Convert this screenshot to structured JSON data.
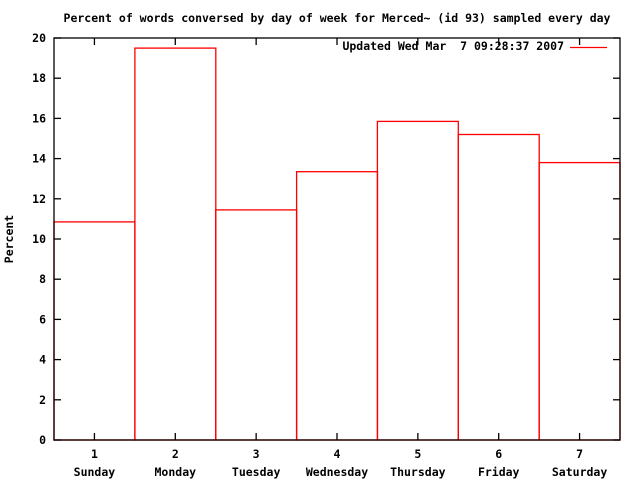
{
  "chart_data": {
    "type": "bar",
    "render_style": "outlined-boxes-gnuplot",
    "title": "Percent of words conversed by day of week for Merced~ (id 93) sampled every day",
    "xlabel": "",
    "ylabel": "Percent",
    "categories": [
      "Sunday",
      "Monday",
      "Tuesday",
      "Wednesday",
      "Thursday",
      "Friday",
      "Saturday"
    ],
    "x_ticks": [
      1,
      2,
      3,
      4,
      5,
      6,
      7
    ],
    "values": [
      10.85,
      19.5,
      11.45,
      13.35,
      15.85,
      15.2,
      13.8
    ],
    "xlim": [
      0.5,
      7.5
    ],
    "ylim": [
      0,
      20
    ],
    "y_tick_step": 2,
    "grid": false,
    "legend": {
      "label": "Updated Wed Mar  7 09:28:37 2007",
      "position": "top-right-inside"
    },
    "colors": {
      "series": "#ff0000",
      "axis": "#000000",
      "text": "#000000",
      "background": "#ffffff"
    }
  }
}
